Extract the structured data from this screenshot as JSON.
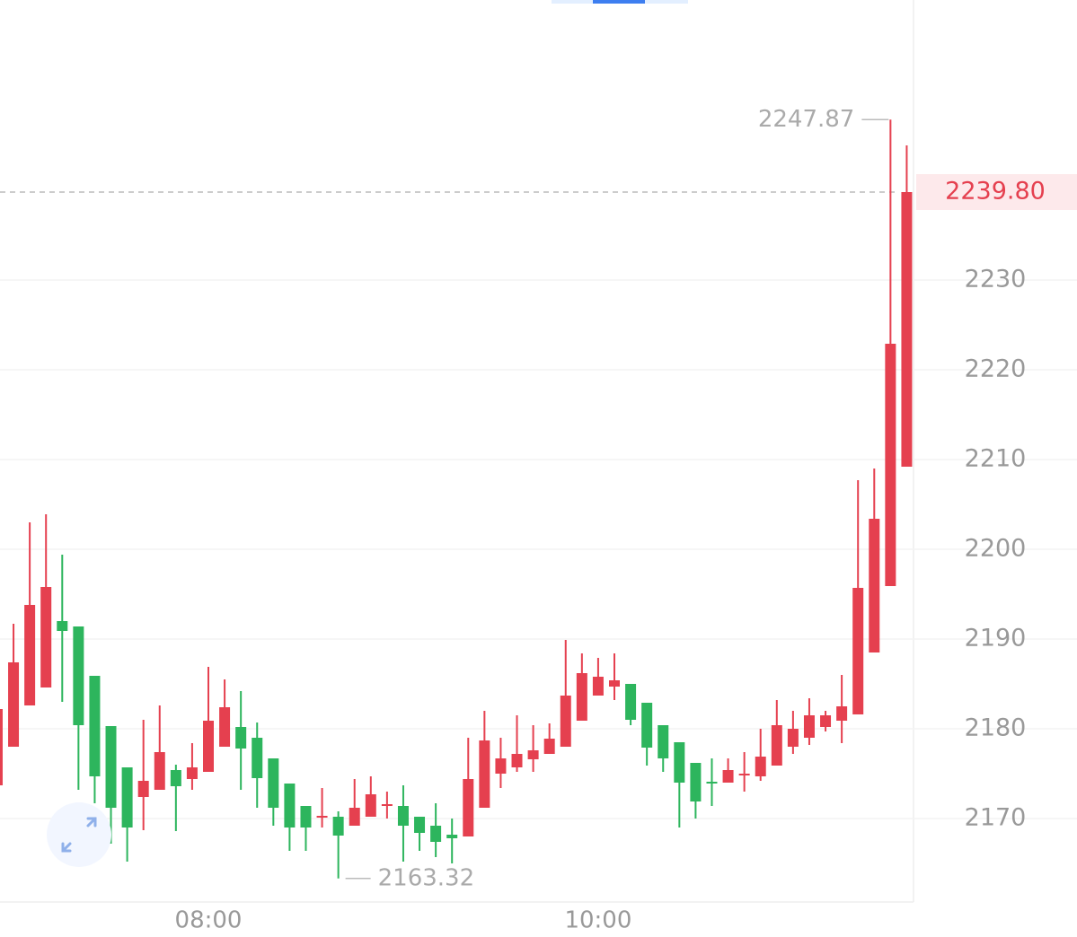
{
  "chart_data": {
    "type": "candlestick",
    "categories": [
      null,
      null,
      null,
      null,
      null,
      null,
      null,
      null,
      null,
      null,
      null,
      null,
      null,
      "08:00",
      null,
      null,
      null,
      null,
      null,
      null,
      null,
      null,
      null,
      null,
      null,
      null,
      null,
      null,
      null,
      null,
      null,
      null,
      null,
      null,
      null,
      null,
      null,
      "10:00",
      null,
      null,
      null,
      null,
      null,
      null,
      null,
      null,
      null,
      null,
      null,
      null,
      null,
      null,
      null,
      null,
      null,
      null,
      null
    ],
    "open": [
      2173.7,
      2178.0,
      2182.6,
      2184.6,
      2192.0,
      2191.4,
      2185.9,
      2180.3,
      2175.7,
      2172.4,
      2173.2,
      2175.4,
      2174.4,
      2175.2,
      2178.0,
      2180.2,
      2179.0,
      2176.7,
      2173.9,
      2171.4,
      2170.2,
      2170.2,
      2169.2,
      2170.2,
      2171.5,
      2171.4,
      2170.2,
      2169.2,
      2168.2,
      2168.0,
      2171.2,
      2175.0,
      2175.7,
      2176.6,
      2177.2,
      2178.0,
      2180.9,
      2183.7,
      2184.7,
      2185.0,
      2182.9,
      2180.4,
      2178.5,
      2176.2,
      2174.1,
      2174.0,
      2174.9,
      2174.7,
      2175.9,
      2178.0,
      2179.0,
      2180.2,
      2180.9,
      2181.6,
      2188.5,
      2195.9,
      2209.2
    ],
    "high": [
      2183.0,
      2191.7,
      2203.0,
      2203.9,
      2199.4,
      2191.4,
      2185.9,
      2180.3,
      2175.7,
      2181.0,
      2182.6,
      2176.0,
      2178.4,
      2186.9,
      2185.5,
      2184.2,
      2180.7,
      2176.7,
      2173.9,
      2171.4,
      2173.4,
      2170.8,
      2174.4,
      2174.7,
      2173.0,
      2173.7,
      2170.2,
      2171.7,
      2170.0,
      2179.0,
      2182.0,
      2179.0,
      2181.5,
      2180.4,
      2180.6,
      2189.9,
      2188.4,
      2187.9,
      2188.4,
      2185.0,
      2182.9,
      2180.4,
      2178.5,
      2176.2,
      2176.7,
      2176.7,
      2177.4,
      2180.0,
      2183.2,
      2182.0,
      2183.4,
      2182.0,
      2186.0,
      2207.7,
      2209.0,
      2247.87,
      2245.0
    ],
    "low": [
      2173.0,
      2178.0,
      2182.6,
      2184.6,
      2183.0,
      2173.2,
      2171.7,
      2167.2,
      2165.2,
      2168.7,
      2173.2,
      2168.6,
      2173.2,
      2175.2,
      2178.0,
      2173.2,
      2171.2,
      2169.2,
      2166.4,
      2166.4,
      2169.0,
      2163.32,
      2169.2,
      2170.2,
      2170.0,
      2165.2,
      2166.4,
      2165.7,
      2165.0,
      2168.0,
      2171.2,
      2173.4,
      2175.2,
      2175.2,
      2177.2,
      2178.0,
      2180.9,
      2183.7,
      2183.2,
      2180.4,
      2175.9,
      2175.2,
      2169.0,
      2170.0,
      2171.4,
      2174.0,
      2173.0,
      2174.2,
      2175.9,
      2177.2,
      2178.2,
      2179.7,
      2178.4,
      2181.6,
      2188.5,
      2195.9,
      2209.2
    ],
    "close": [
      2182.2,
      2187.4,
      2193.8,
      2195.8,
      2190.9,
      2180.4,
      2174.7,
      2171.2,
      2169.0,
      2174.2,
      2177.4,
      2173.6,
      2175.7,
      2180.9,
      2182.4,
      2177.8,
      2174.5,
      2171.2,
      2169.0,
      2169.0,
      2170.3,
      2168.1,
      2171.2,
      2172.7,
      2171.6,
      2169.2,
      2168.4,
      2167.4,
      2167.8,
      2174.4,
      2178.7,
      2176.7,
      2177.2,
      2177.6,
      2178.9,
      2183.7,
      2186.2,
      2185.8,
      2185.4,
      2181.0,
      2177.9,
      2176.7,
      2174.0,
      2171.9,
      2174.0,
      2175.4,
      2175.0,
      2176.9,
      2180.4,
      2180.0,
      2181.5,
      2181.5,
      2182.5,
      2195.7,
      2203.4,
      2222.9,
      2239.8
    ],
    "up_color": "#e5404f",
    "down_color": "#2db55d",
    "ylim": [
      2160.7,
      2261.2
    ],
    "yticks": [
      2170,
      2180,
      2190,
      2200,
      2210,
      2220,
      2230
    ],
    "grid": true,
    "last_price": {
      "value": 2239.8,
      "label": "2239.80"
    },
    "high_marker_index": 55,
    "low_marker_index": 21
  }
}
